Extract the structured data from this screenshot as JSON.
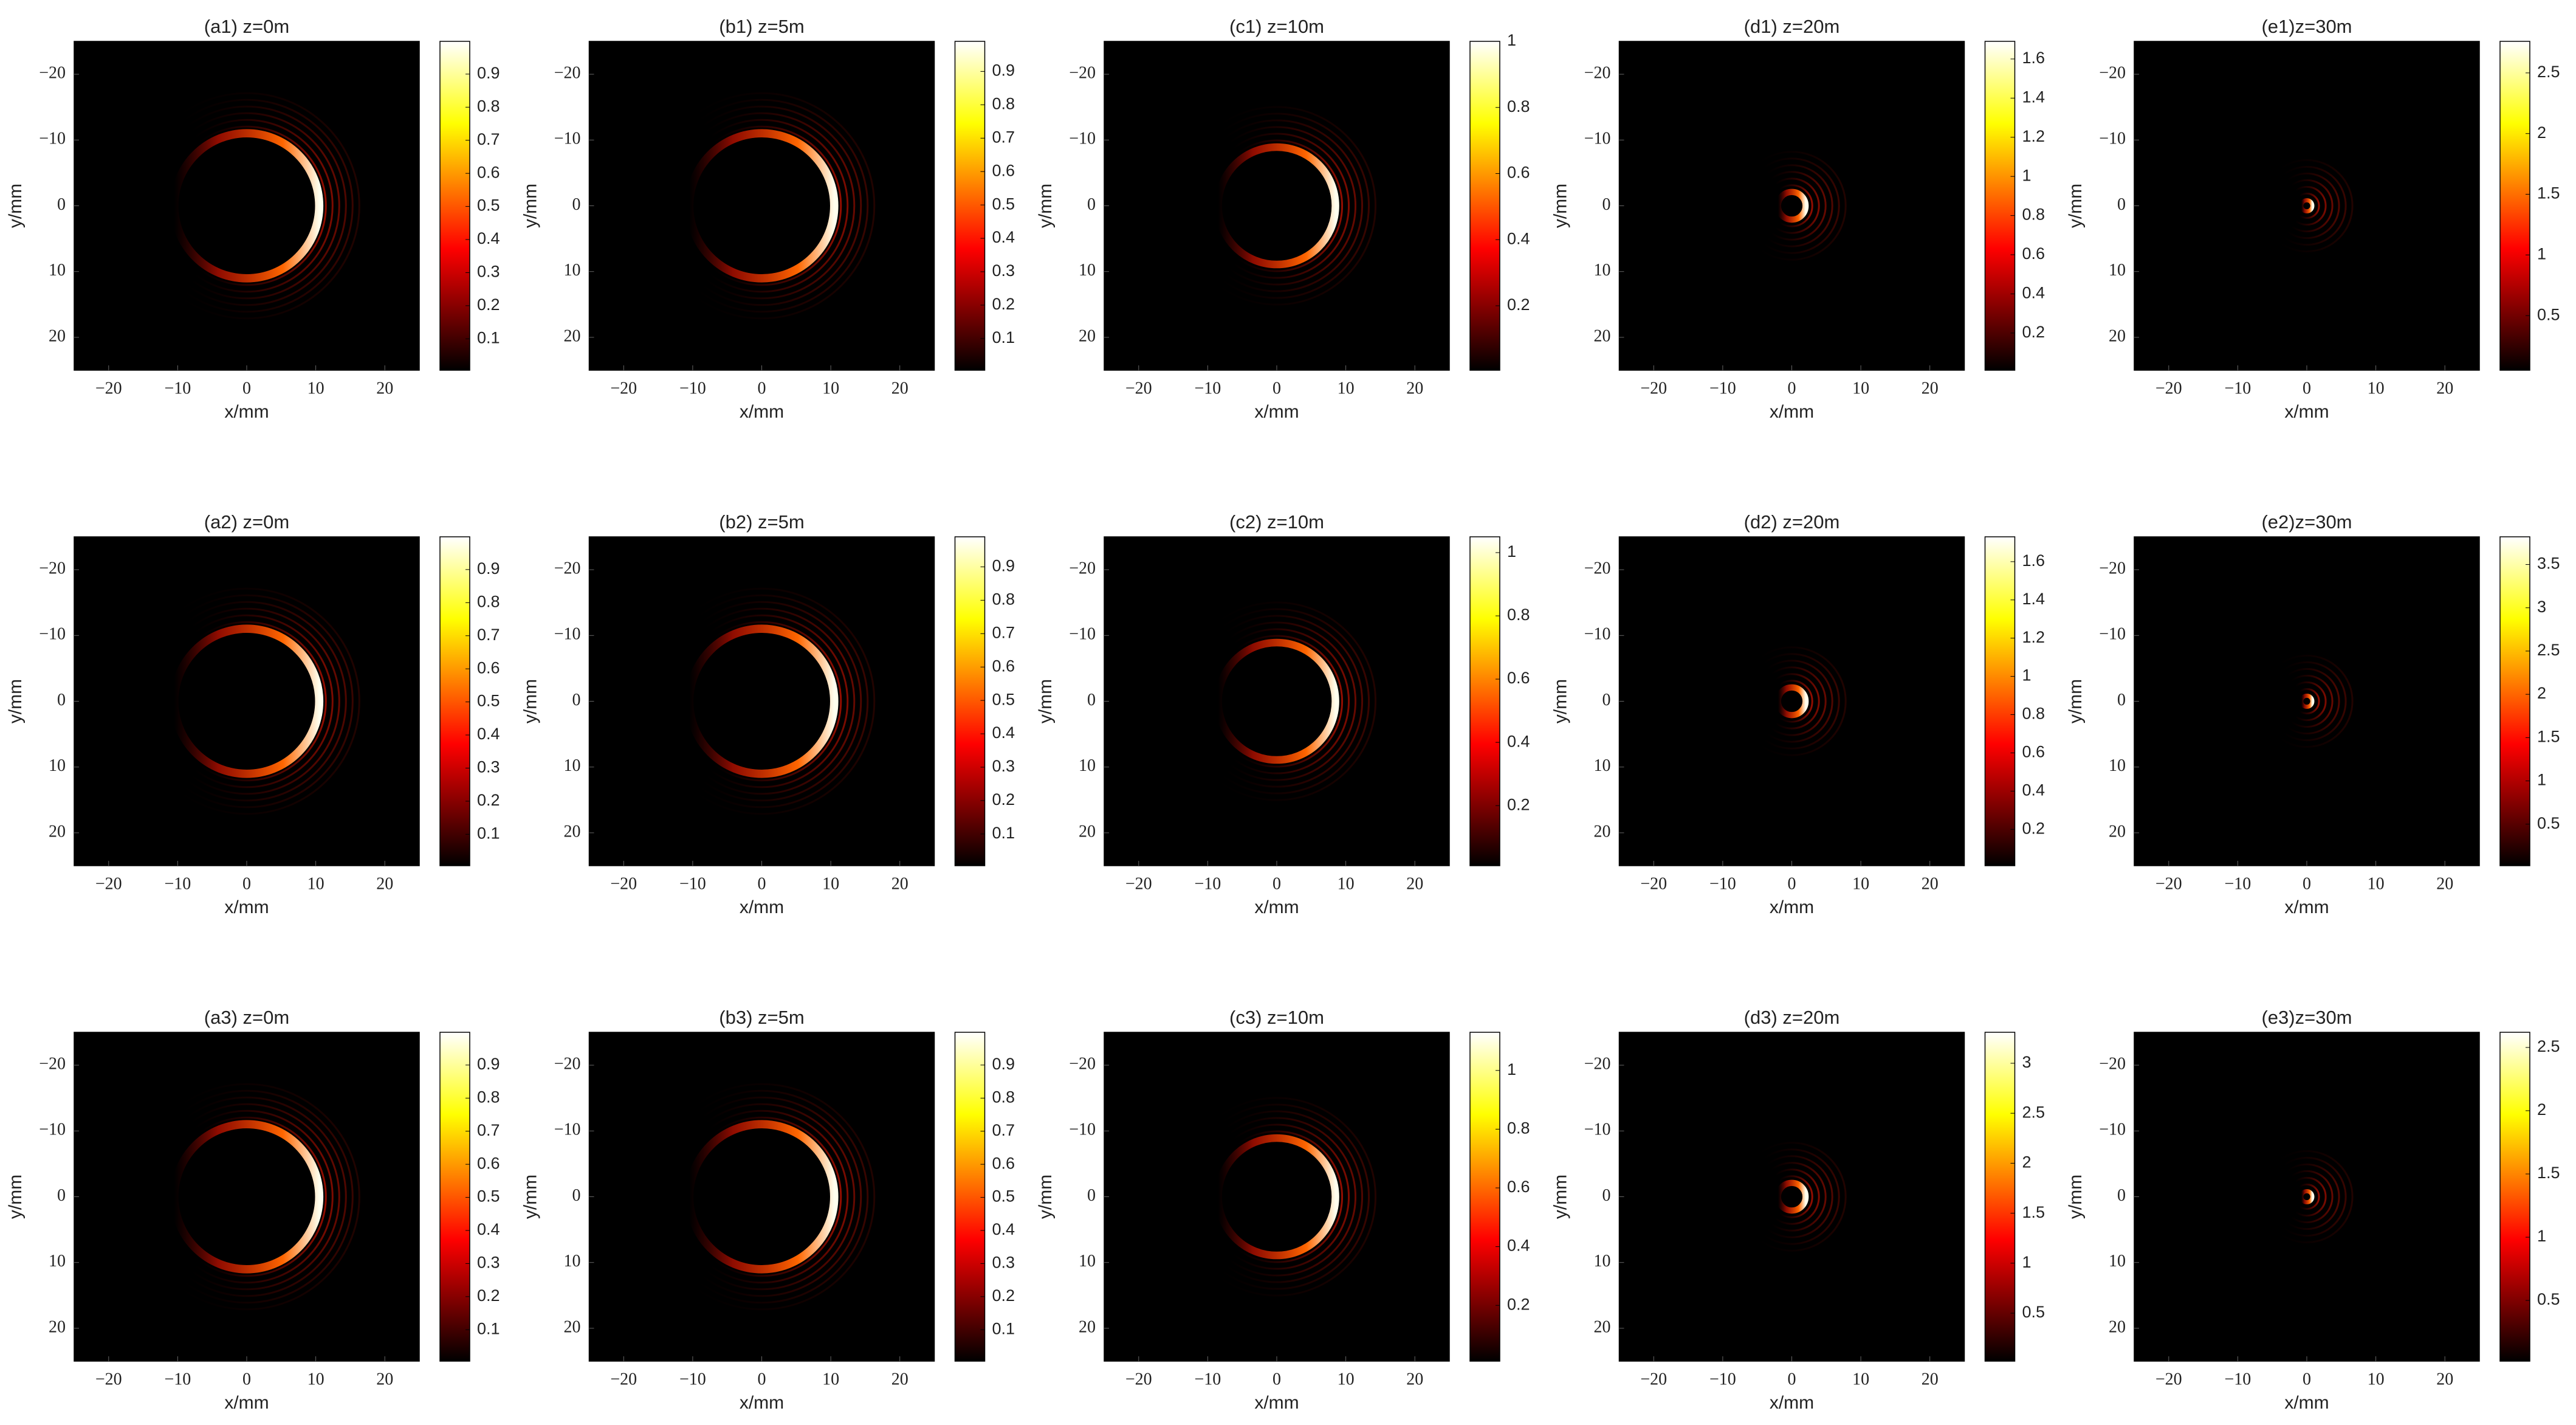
{
  "chart_data": [
    {
      "type": "heatmap",
      "title": "(a1) z=0m",
      "xlabel": "x/mm",
      "ylabel": "y/mm",
      "xlim": [
        -25,
        25
      ],
      "ylim": [
        -25,
        25
      ],
      "y_reversed": true,
      "xticks": [
        {
          "value": -20,
          "label": "−20"
        },
        {
          "value": -10,
          "label": "−10"
        },
        0,
        10,
        20
      ],
      "yticks": [
        {
          "value": -20,
          "label": "−20"
        },
        {
          "value": -10,
          "label": "−10"
        },
        0,
        10,
        20
      ],
      "colormap": "hot",
      "clim": [
        0.005,
        0.999
      ],
      "cticks": [
        0.1,
        0.2,
        0.3,
        0.4,
        0.5,
        0.6,
        0.7,
        0.8,
        0.9
      ]
    },
    {
      "type": "heatmap",
      "title": "(b1) z=5m",
      "xlabel": "x/mm",
      "ylabel": "y/mm",
      "xlim": [
        -25,
        25
      ],
      "ylim": [
        -25,
        25
      ],
      "y_reversed": true,
      "xticks": [
        {
          "value": -20,
          "label": "−20"
        },
        {
          "value": -10,
          "label": "−10"
        },
        0,
        10,
        20
      ],
      "yticks": [
        {
          "value": -20,
          "label": "−20"
        },
        {
          "value": -10,
          "label": "−10"
        },
        0,
        10,
        20
      ],
      "colormap": "hot",
      "clim": [
        0.005,
        0.99
      ],
      "cticks": [
        0.1,
        0.2,
        0.3,
        0.4,
        0.5,
        0.6,
        0.7,
        0.8,
        0.9
      ]
    },
    {
      "type": "heatmap",
      "title": "(c1) z=10m",
      "xlabel": "x/mm",
      "ylabel": "y/mm",
      "xlim": [
        -25,
        25
      ],
      "ylim": [
        -25,
        25
      ],
      "y_reversed": true,
      "xticks": [
        {
          "value": -20,
          "label": "−20"
        },
        {
          "value": -10,
          "label": "−10"
        },
        0,
        10,
        20
      ],
      "yticks": [
        {
          "value": -20,
          "label": "−20"
        },
        {
          "value": -10,
          "label": "−10"
        },
        0,
        10,
        20
      ],
      "colormap": "hot",
      "clim": [
        0.005,
        1
      ],
      "cticks": [
        0.2,
        0.4,
        0.6,
        0.8,
        1
      ]
    },
    {
      "type": "heatmap",
      "title": "(d1) z=20m",
      "xlabel": "x/mm",
      "ylabel": "y/mm",
      "xlim": [
        -25,
        25
      ],
      "ylim": [
        -25,
        25
      ],
      "y_reversed": true,
      "xticks": [
        {
          "value": -20,
          "label": "−20"
        },
        {
          "value": -10,
          "label": "−10"
        },
        0,
        10,
        20
      ],
      "yticks": [
        {
          "value": -20,
          "label": "−20"
        },
        {
          "value": -10,
          "label": "−10"
        },
        0,
        10,
        20
      ],
      "colormap": "hot",
      "clim": [
        0.01,
        1.69
      ],
      "cticks": [
        0.2,
        0.4,
        0.6,
        0.8,
        1,
        1.2,
        1.4,
        1.6
      ]
    },
    {
      "type": "heatmap",
      "title": "(e1)z=30m",
      "xlabel": "x/mm",
      "ylabel": "y/mm",
      "xlim": [
        -25,
        25
      ],
      "ylim": [
        -25,
        25
      ],
      "y_reversed": true,
      "xticks": [
        {
          "value": -20,
          "label": "−20"
        },
        {
          "value": -10,
          "label": "−10"
        },
        0,
        10,
        20
      ],
      "yticks": [
        {
          "value": -20,
          "label": "−20"
        },
        {
          "value": -10,
          "label": "−10"
        },
        0,
        10,
        20
      ],
      "colormap": "hot",
      "clim": [
        0.05,
        2.76
      ],
      "cticks": [
        0.5,
        1,
        1.5,
        2,
        2.5
      ]
    },
    {
      "type": "heatmap",
      "title": "(a2) z=0m",
      "xlabel": "x/mm",
      "ylabel": "y/mm",
      "xlim": [
        -25,
        25
      ],
      "ylim": [
        -25,
        25
      ],
      "y_reversed": true,
      "xticks": [
        {
          "value": -20,
          "label": "−20"
        },
        {
          "value": -10,
          "label": "−10"
        },
        0,
        10,
        20
      ],
      "yticks": [
        {
          "value": -20,
          "label": "−20"
        },
        {
          "value": -10,
          "label": "−10"
        },
        0,
        10,
        20
      ],
      "colormap": "hot",
      "clim": [
        0.005,
        0.999
      ],
      "cticks": [
        0.1,
        0.2,
        0.3,
        0.4,
        0.5,
        0.6,
        0.7,
        0.8,
        0.9
      ]
    },
    {
      "type": "heatmap",
      "title": "(b2) z=5m",
      "xlabel": "x/mm",
      "ylabel": "y/mm",
      "xlim": [
        -25,
        25
      ],
      "ylim": [
        -25,
        25
      ],
      "y_reversed": true,
      "xticks": [
        {
          "value": -20,
          "label": "−20"
        },
        {
          "value": -10,
          "label": "−10"
        },
        0,
        10,
        20
      ],
      "yticks": [
        {
          "value": -20,
          "label": "−20"
        },
        {
          "value": -10,
          "label": "−10"
        },
        0,
        10,
        20
      ],
      "colormap": "hot",
      "clim": [
        0.005,
        0.99
      ],
      "cticks": [
        0.1,
        0.2,
        0.3,
        0.4,
        0.5,
        0.6,
        0.7,
        0.8,
        0.9
      ]
    },
    {
      "type": "heatmap",
      "title": "(c2) z=10m",
      "xlabel": "x/mm",
      "ylabel": "y/mm",
      "xlim": [
        -25,
        25
      ],
      "ylim": [
        -25,
        25
      ],
      "y_reversed": true,
      "xticks": [
        {
          "value": -20,
          "label": "−20"
        },
        {
          "value": -10,
          "label": "−10"
        },
        0,
        10,
        20
      ],
      "yticks": [
        {
          "value": -20,
          "label": "−20"
        },
        {
          "value": -10,
          "label": "−10"
        },
        0,
        10,
        20
      ],
      "colormap": "hot",
      "clim": [
        0.01,
        1.05
      ],
      "cticks": [
        0.2,
        0.4,
        0.6,
        0.8,
        1
      ]
    },
    {
      "type": "heatmap",
      "title": "(d2) z=20m",
      "xlabel": "x/mm",
      "ylabel": "y/mm",
      "xlim": [
        -25,
        25
      ],
      "ylim": [
        -25,
        25
      ],
      "y_reversed": true,
      "xticks": [
        {
          "value": -20,
          "label": "−20"
        },
        {
          "value": -10,
          "label": "−10"
        },
        0,
        10,
        20
      ],
      "yticks": [
        {
          "value": -20,
          "label": "−20"
        },
        {
          "value": -10,
          "label": "−10"
        },
        0,
        10,
        20
      ],
      "colormap": "hot",
      "clim": [
        0.01,
        1.73
      ],
      "cticks": [
        0.2,
        0.4,
        0.6,
        0.8,
        1,
        1.2,
        1.4,
        1.6
      ]
    },
    {
      "type": "heatmap",
      "title": "(e2)z=30m",
      "xlabel": "x/mm",
      "ylabel": "y/mm",
      "xlim": [
        -25,
        25
      ],
      "ylim": [
        -25,
        25
      ],
      "y_reversed": true,
      "xticks": [
        {
          "value": -20,
          "label": "−20"
        },
        {
          "value": -10,
          "label": "−10"
        },
        0,
        10,
        20
      ],
      "yticks": [
        {
          "value": -20,
          "label": "−20"
        },
        {
          "value": -10,
          "label": "−10"
        },
        0,
        10,
        20
      ],
      "colormap": "hot",
      "clim": [
        0.02,
        3.82
      ],
      "cticks": [
        0.5,
        1,
        1.5,
        2,
        2.5,
        3,
        3.5
      ]
    },
    {
      "type": "heatmap",
      "title": "(a3) z=0m",
      "xlabel": "x/mm",
      "ylabel": "y/mm",
      "xlim": [
        -25,
        25
      ],
      "ylim": [
        -25,
        25
      ],
      "y_reversed": true,
      "xticks": [
        {
          "value": -20,
          "label": "−20"
        },
        {
          "value": -10,
          "label": "−10"
        },
        0,
        10,
        20
      ],
      "yticks": [
        {
          "value": -20,
          "label": "−20"
        },
        {
          "value": -10,
          "label": "−10"
        },
        0,
        10,
        20
      ],
      "colormap": "hot",
      "clim": [
        0.005,
        0.999
      ],
      "cticks": [
        0.1,
        0.2,
        0.3,
        0.4,
        0.5,
        0.6,
        0.7,
        0.8,
        0.9
      ]
    },
    {
      "type": "heatmap",
      "title": "(b3) z=5m",
      "xlabel": "x/mm",
      "ylabel": "y/mm",
      "xlim": [
        -25,
        25
      ],
      "ylim": [
        -25,
        25
      ],
      "y_reversed": true,
      "xticks": [
        {
          "value": -20,
          "label": "−20"
        },
        {
          "value": -10,
          "label": "−10"
        },
        0,
        10,
        20
      ],
      "yticks": [
        {
          "value": -20,
          "label": "−20"
        },
        {
          "value": -10,
          "label": "−10"
        },
        0,
        10,
        20
      ],
      "colormap": "hot",
      "clim": [
        0.005,
        0.999
      ],
      "cticks": [
        0.1,
        0.2,
        0.3,
        0.4,
        0.5,
        0.6,
        0.7,
        0.8,
        0.9
      ]
    },
    {
      "type": "heatmap",
      "title": "(c3) z=10m",
      "xlabel": "x/mm",
      "ylabel": "y/mm",
      "xlim": [
        -25,
        25
      ],
      "ylim": [
        -25,
        25
      ],
      "y_reversed": true,
      "xticks": [
        {
          "value": -20,
          "label": "−20"
        },
        {
          "value": -10,
          "label": "−10"
        },
        0,
        10,
        20
      ],
      "yticks": [
        {
          "value": -20,
          "label": "−20"
        },
        {
          "value": -10,
          "label": "−10"
        },
        0,
        10,
        20
      ],
      "colormap": "hot",
      "clim": [
        0.01,
        1.13
      ],
      "cticks": [
        0.2,
        0.4,
        0.6,
        0.8,
        1
      ]
    },
    {
      "type": "heatmap",
      "title": "(d3) z=20m",
      "xlabel": "x/mm",
      "ylabel": "y/mm",
      "xlim": [
        -25,
        25
      ],
      "ylim": [
        -25,
        25
      ],
      "y_reversed": true,
      "xticks": [
        {
          "value": -20,
          "label": "−20"
        },
        {
          "value": -10,
          "label": "−10"
        },
        0,
        10,
        20
      ],
      "yticks": [
        {
          "value": -20,
          "label": "−20"
        },
        {
          "value": -10,
          "label": "−10"
        },
        0,
        10,
        20
      ],
      "colormap": "hot",
      "clim": [
        0.02,
        3.31
      ],
      "cticks": [
        0.5,
        1,
        1.5,
        2,
        2.5,
        3
      ]
    },
    {
      "type": "heatmap",
      "title": "(e3)z=30m",
      "xlabel": "x/mm",
      "ylabel": "y/mm",
      "xlim": [
        -25,
        25
      ],
      "ylim": [
        -25,
        25
      ],
      "y_reversed": true,
      "xticks": [
        {
          "value": -20,
          "label": "−20"
        },
        {
          "value": -10,
          "label": "−10"
        },
        0,
        10,
        20
      ],
      "yticks": [
        {
          "value": -20,
          "label": "−20"
        },
        {
          "value": -10,
          "label": "−10"
        },
        0,
        10,
        20
      ],
      "colormap": "hot",
      "clim": [
        0.02,
        2.62
      ],
      "cticks": [
        0.5,
        1,
        1.5,
        2,
        2.5
      ]
    }
  ]
}
